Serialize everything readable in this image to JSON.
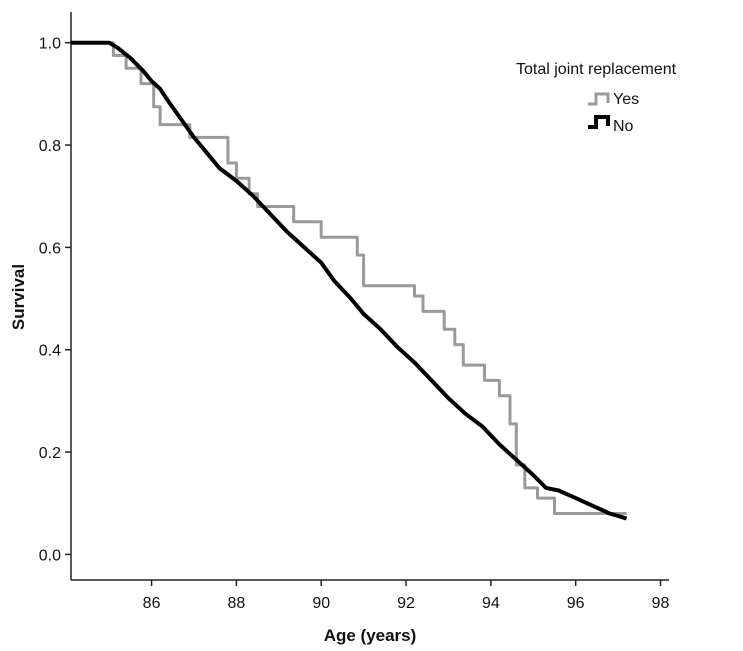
{
  "chart_data": {
    "type": "line",
    "subtype": "kaplan-meier step",
    "xlabel": "Age (years)",
    "ylabel": "Survival",
    "xlim": [
      84.1,
      98.2
    ],
    "ylim": [
      -0.05,
      1.06
    ],
    "x_ticks": [
      86,
      88,
      90,
      92,
      94,
      96,
      98
    ],
    "x_tick_labels": [
      "86",
      "88",
      "90",
      "92",
      "94",
      "96",
      "98"
    ],
    "y_ticks": [
      0.0,
      0.2,
      0.4,
      0.6,
      0.8,
      1.0
    ],
    "y_tick_labels": [
      "0.0",
      "0.2",
      "0.4",
      "0.6",
      "0.8",
      "1.0"
    ],
    "grid": false,
    "legend": {
      "title": "Total joint replacement",
      "placement": "top-right",
      "entries": [
        "Yes",
        "No"
      ]
    },
    "series": [
      {
        "name": "Yes",
        "color": "#9a9a9a",
        "points": [
          [
            84.1,
            1.0
          ],
          [
            85.1,
            1.0
          ],
          [
            85.1,
            0.975
          ],
          [
            85.4,
            0.975
          ],
          [
            85.4,
            0.95
          ],
          [
            85.75,
            0.95
          ],
          [
            85.75,
            0.92
          ],
          [
            86.05,
            0.92
          ],
          [
            86.05,
            0.875
          ],
          [
            86.2,
            0.875
          ],
          [
            86.2,
            0.84
          ],
          [
            86.9,
            0.84
          ],
          [
            86.9,
            0.815
          ],
          [
            87.8,
            0.815
          ],
          [
            87.8,
            0.765
          ],
          [
            88.0,
            0.765
          ],
          [
            88.0,
            0.735
          ],
          [
            88.3,
            0.735
          ],
          [
            88.3,
            0.705
          ],
          [
            88.5,
            0.705
          ],
          [
            88.5,
            0.68
          ],
          [
            89.35,
            0.68
          ],
          [
            89.35,
            0.65
          ],
          [
            90.0,
            0.65
          ],
          [
            90.0,
            0.62
          ],
          [
            90.85,
            0.62
          ],
          [
            90.85,
            0.585
          ],
          [
            91.0,
            0.585
          ],
          [
            91.0,
            0.525
          ],
          [
            92.2,
            0.525
          ],
          [
            92.2,
            0.505
          ],
          [
            92.4,
            0.505
          ],
          [
            92.4,
            0.475
          ],
          [
            92.9,
            0.475
          ],
          [
            92.9,
            0.44
          ],
          [
            93.15,
            0.44
          ],
          [
            93.15,
            0.41
          ],
          [
            93.35,
            0.41
          ],
          [
            93.35,
            0.37
          ],
          [
            93.85,
            0.37
          ],
          [
            93.85,
            0.34
          ],
          [
            94.2,
            0.34
          ],
          [
            94.2,
            0.31
          ],
          [
            94.45,
            0.31
          ],
          [
            94.45,
            0.255
          ],
          [
            94.6,
            0.255
          ],
          [
            94.6,
            0.175
          ],
          [
            94.8,
            0.175
          ],
          [
            94.8,
            0.13
          ],
          [
            95.1,
            0.13
          ],
          [
            95.1,
            0.11
          ],
          [
            95.5,
            0.11
          ],
          [
            95.5,
            0.08
          ],
          [
            97.2,
            0.08
          ]
        ]
      },
      {
        "name": "No",
        "color": "#000000",
        "points": [
          [
            84.1,
            1.0
          ],
          [
            85.0,
            1.0
          ],
          [
            85.2,
            0.99
          ],
          [
            85.5,
            0.97
          ],
          [
            85.8,
            0.945
          ],
          [
            86.0,
            0.925
          ],
          [
            86.2,
            0.91
          ],
          [
            86.4,
            0.885
          ],
          [
            86.7,
            0.85
          ],
          [
            87.0,
            0.815
          ],
          [
            87.3,
            0.785
          ],
          [
            87.6,
            0.755
          ],
          [
            88.0,
            0.73
          ],
          [
            88.4,
            0.7
          ],
          [
            88.8,
            0.665
          ],
          [
            89.2,
            0.63
          ],
          [
            89.6,
            0.6
          ],
          [
            90.0,
            0.57
          ],
          [
            90.3,
            0.535
          ],
          [
            90.7,
            0.5
          ],
          [
            91.0,
            0.47
          ],
          [
            91.4,
            0.44
          ],
          [
            91.8,
            0.405
          ],
          [
            92.2,
            0.375
          ],
          [
            92.6,
            0.34
          ],
          [
            93.0,
            0.305
          ],
          [
            93.4,
            0.275
          ],
          [
            93.8,
            0.25
          ],
          [
            94.2,
            0.215
          ],
          [
            94.6,
            0.185
          ],
          [
            95.0,
            0.155
          ],
          [
            95.3,
            0.13
          ],
          [
            95.6,
            0.125
          ],
          [
            96.0,
            0.11
          ],
          [
            96.4,
            0.095
          ],
          [
            96.8,
            0.08
          ],
          [
            97.0,
            0.075
          ],
          [
            97.2,
            0.07
          ]
        ]
      }
    ]
  }
}
